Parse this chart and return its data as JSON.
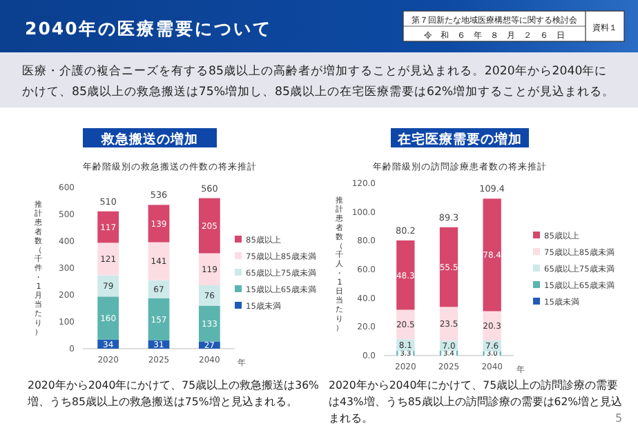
{
  "chart_data": [
    {
      "type": "other",
      "title": "2040年の医療需要について",
      "annotations": [
        "第７回新たな地域医療構想等に関する検討会",
        "令　和　６　年　８　月　２　６　日",
        "資料１",
        "医療・介護の複合ニーズを有する85歳以上の高齢者が増加することが見込まれる。2020年から2040年にかけて、85歳以上の救急搬送は75%増加し、85歳以上の在宅医療需要は62%増加することが見込まれる。",
        "5"
      ]
    },
    {
      "type": "bar",
      "stacked": true,
      "title": "救急搬送の増加",
      "subtitle": "年齢階級別の救急搬送の件数の将来推計",
      "ylabel": "推計患者数（千件・1月当たり）",
      "xlabel": "年",
      "categories": [
        "2020",
        "2025",
        "2040"
      ],
      "ylim": [
        0,
        600
      ],
      "yticks": [
        0,
        100,
        200,
        300,
        400,
        500,
        600
      ],
      "legend": "right",
      "data_labels": true,
      "totals": [
        "510",
        "536",
        "560"
      ],
      "series": [
        {
          "name": "15歳未満",
          "color": "#1f5bb5",
          "values": [
            34,
            31,
            27
          ]
        },
        {
          "name": "15歳以上65歳未満",
          "color": "#5bb5ae",
          "values": [
            160,
            157,
            133
          ]
        },
        {
          "name": "65歳以上75歳未満",
          "color": "#cde9ea",
          "values": [
            79,
            67,
            76
          ]
        },
        {
          "name": "75歳以上85歳未満",
          "color": "#fbdde3",
          "values": [
            121,
            141,
            119
          ]
        },
        {
          "name": "85歳以上",
          "color": "#d6476b",
          "values": [
            117,
            139,
            205
          ]
        }
      ],
      "annotations": [
        "2020年から2040年にかけて、75歳以上の救急搬送は36%増、うち85歳以上の救急搬送は75%増と見込まれる。"
      ]
    },
    {
      "type": "bar",
      "stacked": true,
      "title": "在宅医療需要の増加",
      "subtitle": "年齢階級別の訪問診療患者数の将来推計",
      "ylabel": "推計患者数（千人・1日当たり）",
      "xlabel": "年",
      "categories": [
        "2020",
        "2025",
        "2040"
      ],
      "ylim": [
        0,
        120
      ],
      "yticks": [
        {
          "value": 0,
          "label": "0.0"
        },
        {
          "value": 20,
          "label": "20.0"
        },
        {
          "value": 40,
          "label": "40.0"
        },
        {
          "value": 60,
          "label": "60.0"
        },
        {
          "value": 80,
          "label": "80.0"
        },
        {
          "value": 100,
          "label": "100.0"
        },
        {
          "value": 120,
          "label": "120.0"
        }
      ],
      "legend": "right",
      "totals": [
        "80.2",
        "89.3",
        "109.4"
      ],
      "series": [
        {
          "name": "15歳未満",
          "color": "#1f5bb5",
          "values": [
            0,
            0,
            0
          ]
        },
        {
          "name": "15歳以上65歳未満",
          "color": "#5bb5ae",
          "values": [
            3.3,
            3.4,
            3.0
          ],
          "value_labels": [
            "3.3",
            "3.4",
            "3.0"
          ]
        },
        {
          "name": "65歳以上75歳未満",
          "color": "#cde9ea",
          "values": [
            8.1,
            7.0,
            7.6
          ],
          "value_labels": [
            "8.1",
            "7.0",
            "7.6"
          ]
        },
        {
          "name": "75歳以上85歳未満",
          "color": "#fbdde3",
          "values": [
            20.5,
            23.5,
            20.3
          ],
          "value_labels": [
            "20.5",
            "23.5",
            "20.3"
          ]
        },
        {
          "name": "85歳以上",
          "color": "#d6476b",
          "values": [
            48.3,
            55.5,
            78.4
          ],
          "value_labels": [
            "48.3",
            "55.5",
            "78.4"
          ]
        }
      ],
      "annotations": [
        "2020年から2040年にかけて、75歳以上の訪問診療の需要は43%増、うち85歳以上の訪問診療の需要は62%増と見込まれる。"
      ]
    }
  ]
}
